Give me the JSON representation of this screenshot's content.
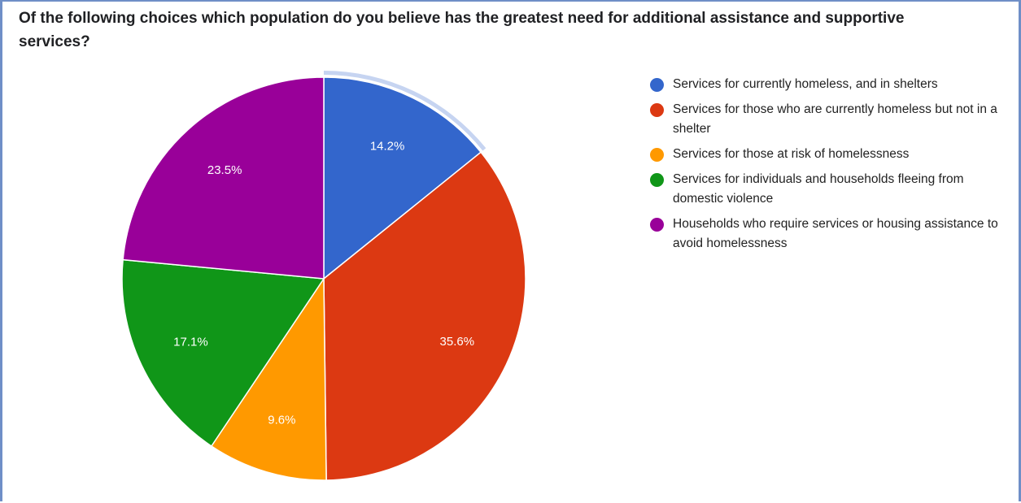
{
  "chart_data": {
    "type": "pie",
    "title": "Of the following choices which population do you believe has the greatest need for additional assistance and supportive services?",
    "slices": [
      {
        "label": "Services for currently homeless, and in shelters",
        "value": 14.2,
        "value_label": "14.2%",
        "color": "#3366cc",
        "highlighted": true
      },
      {
        "label": "Services for those who are currently homeless but not in a shelter",
        "value": 35.6,
        "value_label": "35.6%",
        "color": "#dc3912",
        "highlighted": false
      },
      {
        "label": "Services for those at risk of homelessness",
        "value": 9.6,
        "value_label": "9.6%",
        "color": "#ff9900",
        "highlighted": false
      },
      {
        "label": "Services for individuals and households fleeing from domestic violence",
        "value": 17.1,
        "value_label": "17.1%",
        "color": "#109618",
        "highlighted": false
      },
      {
        "label": "Households who require services or housing assistance to avoid homelessness",
        "value": 23.5,
        "value_label": "23.5%",
        "color": "#990099",
        "highlighted": false
      }
    ],
    "legend_position": "right",
    "highlight_color": "#c6d4f1"
  }
}
